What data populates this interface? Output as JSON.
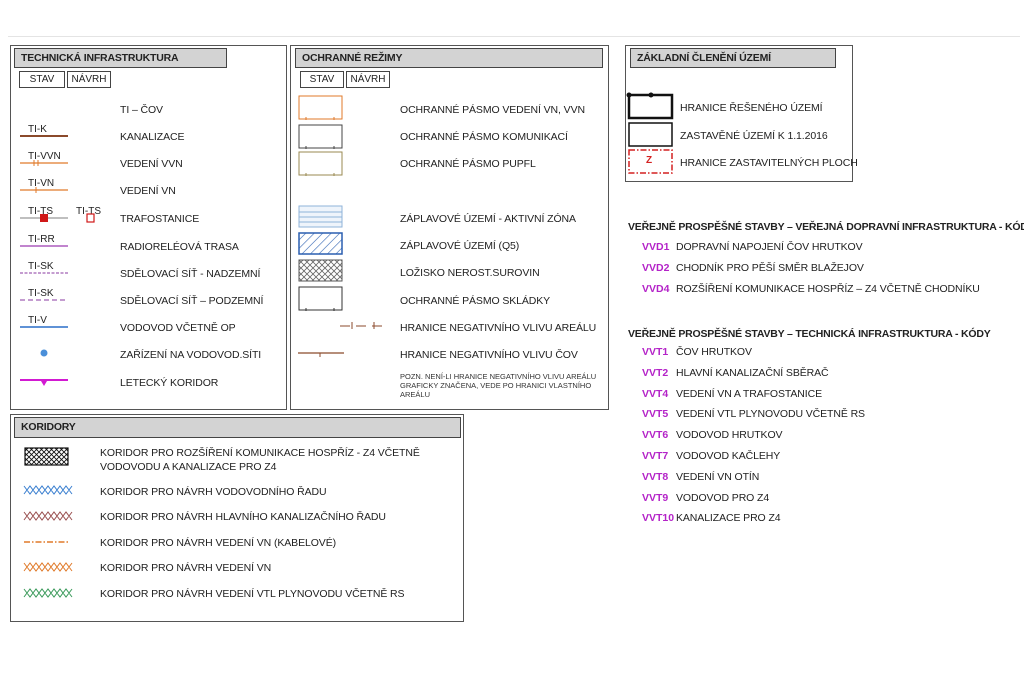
{
  "ti": {
    "title": "Technická infrastruktura",
    "tab_stav": "STAV",
    "tab_navrh": "NÁVRH",
    "items": [
      {
        "code": "",
        "label": "TI – ČOV"
      },
      {
        "code": "TI-K",
        "label": "Kanalizace"
      },
      {
        "code": "TI-VVN",
        "label": "Vedení VVN"
      },
      {
        "code": "TI-VN",
        "label": "Vedení VN"
      },
      {
        "code": "TI-TS",
        "code2": "TI-TS",
        "label": "Trafostanice"
      },
      {
        "code": "TI-RR",
        "label": "Radioreléová trasa"
      },
      {
        "code": "TI-SK",
        "label": "Sdělovací síť - nadzemní"
      },
      {
        "code": "TI-SK",
        "label": "Sdělovací síť – podzemní"
      },
      {
        "code": "TI-V",
        "label": "Vodovod včetně OP"
      },
      {
        "code": "",
        "label": "Zařízení na vodovod.síti"
      },
      {
        "code": "",
        "label": "Letecký koridor"
      }
    ]
  },
  "or": {
    "title": "Ochranné režimy",
    "tab_stav": "STAV",
    "tab_navrh": "NÁVRH",
    "items": [
      {
        "label": "Ochranné pásmo vedení VN, VVN"
      },
      {
        "label": "Ochranné pásmo komunikací"
      },
      {
        "label": "Ochranné pásmo PUPFL"
      },
      {
        "label": "Záplavové území - aktivní zóna"
      },
      {
        "label": "Záplavové území (Q5)"
      },
      {
        "label": "Ložisko nerost.surovin"
      },
      {
        "label": "Ochranné pásmo skládky"
      },
      {
        "label": "Hranice negativního vlivu areálu"
      },
      {
        "label": "Hranice negativního vlivu ČOV"
      }
    ],
    "note": "Pozn. není-li hranice negativního vlivu areálu graficky značena, vede po hranici vlastního areálu"
  },
  "zc": {
    "title": "Základní členění území",
    "items": [
      {
        "label": "Hranice řešeného území"
      },
      {
        "label": "Zastavěné území k 1.1.2016"
      },
      {
        "label": "Hranice zastavitelných ploch"
      }
    ],
    "z_letter": "Z"
  },
  "kor": {
    "title": "Koridory",
    "items": [
      {
        "label": "Koridor pro rozšíření komunikace Hospříz - Z4 včetně",
        "label2": "vodovodu a kanalizace pro Z4"
      },
      {
        "label": "Koridor pro návrh vodovodního řadu"
      },
      {
        "label": "Koridor pro návrh hlavního kanalizačního řadu"
      },
      {
        "label": "Koridor pro návrh vedení VN (kabelové)"
      },
      {
        "label": "Koridor pro návrh vedení VN"
      },
      {
        "label": "Koridor pro návrh vedení VTL plynovodu včetně RS"
      }
    ]
  },
  "vps_doprava": {
    "title": "Veřejně prospěšné stavby – veřejná dopravní infrastruktura - kódy",
    "items": [
      {
        "code": "VVD1",
        "label": "Dopravní napojení ČOV Hrutkov"
      },
      {
        "code": "VVD2",
        "label": "Chodník pro pěší směr Blažejov"
      },
      {
        "code": "VVD4",
        "label": "Rozšíření komunikace Hospříz – Z4 včetně chodníku"
      }
    ]
  },
  "vps_ti": {
    "title": "Veřejně prospěšné stavby – technická infrastruktura - kódy",
    "items": [
      {
        "code": "VVT1",
        "label": "ČOV Hrutkov"
      },
      {
        "code": "VVT2",
        "label": "Hlavní kanalizační sběrač"
      },
      {
        "code": "VVT4",
        "label": "Vedení VN a trafostanice"
      },
      {
        "code": "VVT5",
        "label": "Vedení VTL plynovodu včetně RS"
      },
      {
        "code": "VVT6",
        "label": "Vodovod Hrutkov"
      },
      {
        "code": "VVT7",
        "label": "Vodovod Kačlehy"
      },
      {
        "code": "VVT8",
        "label": "Vedení VN Otín"
      },
      {
        "code": "VVT9",
        "label": "Vodovod pro Z4"
      },
      {
        "code": "VVT10",
        "label": "Kanalizace pro Z4"
      }
    ]
  },
  "colors": {
    "vps_code": "#b423c8",
    "kanalizace": "#8b4a2b",
    "vn": "#e07a2a",
    "rr": "#9c3bb0",
    "sk": "#8a3aa0",
    "vodovod": "#2a6fc9",
    "letecky": "#d21ad2",
    "ts_red": "#d01818",
    "zastav_red": "#d42020"
  }
}
